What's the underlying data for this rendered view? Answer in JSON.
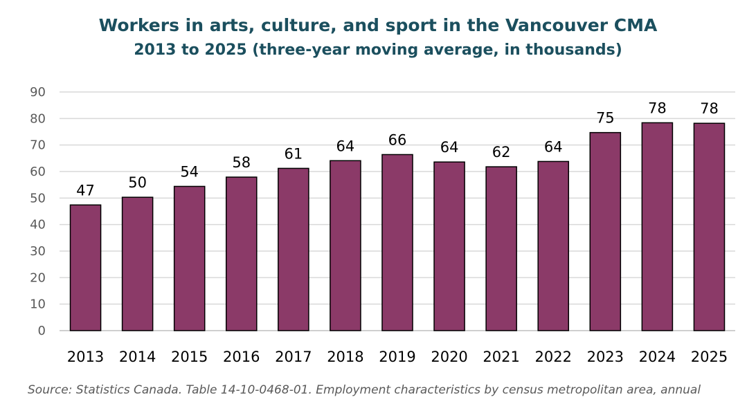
{
  "chart_data": {
    "type": "bar",
    "title": "Workers in arts, culture, and sport in the Vancouver CMA",
    "subtitle": "2013 to 2025 (three-year moving average, in thousands)",
    "categories": [
      "2013",
      "2014",
      "2015",
      "2016",
      "2017",
      "2018",
      "2019",
      "2020",
      "2021",
      "2022",
      "2023",
      "2024",
      "2025"
    ],
    "values": [
      47.4,
      50.3,
      54.4,
      57.9,
      61.2,
      64.1,
      66.4,
      63.6,
      61.8,
      63.8,
      74.7,
      78.4,
      78.2
    ],
    "data_labels": [
      "47",
      "50",
      "54",
      "58",
      "61",
      "64",
      "66",
      "64",
      "62",
      "64",
      "75",
      "78",
      "78"
    ],
    "ylim": [
      0,
      90
    ],
    "yticks": [
      "0",
      "10",
      "20",
      "30",
      "40",
      "50",
      "60",
      "70",
      "80",
      "90"
    ],
    "grid": true,
    "legend": "none",
    "bar_color": "#8b3a68",
    "bar_outline_color": "#000000",
    "source": "Source: Statistics Canada. Table 14-10-0468-01. Employment characteristics by census metropolitan area, annual"
  }
}
